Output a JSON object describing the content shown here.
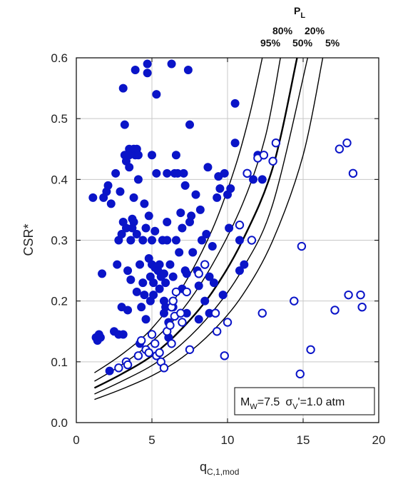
{
  "chart_data": {
    "type": "scatter",
    "xlabel": "q",
    "xlabel_sub": "C,1,mod",
    "ylabel": "CSR*",
    "xlim": [
      0,
      20
    ],
    "ylim": [
      0,
      0.6
    ],
    "xticks": [
      "0",
      "5",
      "10",
      "15",
      "20"
    ],
    "yticks": [
      "0.0",
      "0.1",
      "0.2",
      "0.3",
      "0.4",
      "0.5",
      "0.6"
    ],
    "grid": true,
    "curve_group_title": "P",
    "curve_group_title_sub": "L",
    "curve_labels": [
      "80%",
      "20%",
      "95%",
      "50%",
      "5%"
    ],
    "annotation": {
      "m": "M",
      "m_sub": "W",
      "m_val": "=7.5",
      "s": "σ",
      "s_sub": "V",
      "s_val": "'=1.0 atm"
    },
    "probability_curves": [
      {
        "name": "95%",
        "x": [
          1.2,
          3,
          5,
          7,
          9,
          10.5,
          11.5,
          12.3
        ],
        "y": [
          0.082,
          0.112,
          0.155,
          0.222,
          0.318,
          0.42,
          0.51,
          0.6
        ]
      },
      {
        "name": "80%",
        "x": [
          1.2,
          3,
          5,
          7,
          9,
          11,
          12.5,
          13.5
        ],
        "y": [
          0.068,
          0.095,
          0.133,
          0.185,
          0.26,
          0.36,
          0.47,
          0.6
        ]
      },
      {
        "name": "50%",
        "x": [
          1.2,
          3,
          5,
          7,
          9,
          11,
          13,
          14.6
        ],
        "y": [
          0.057,
          0.08,
          0.11,
          0.155,
          0.215,
          0.3,
          0.42,
          0.6
        ]
      },
      {
        "name": "20%",
        "x": [
          1.2,
          3,
          5,
          7,
          9,
          11,
          13,
          15.3
        ],
        "y": [
          0.047,
          0.068,
          0.094,
          0.13,
          0.182,
          0.253,
          0.36,
          0.6
        ]
      },
      {
        "name": "5%",
        "x": [
          1.2,
          3,
          5,
          7,
          9,
          11,
          13,
          15,
          16.3
        ],
        "y": [
          0.038,
          0.055,
          0.077,
          0.107,
          0.15,
          0.21,
          0.3,
          0.44,
          0.6
        ]
      }
    ],
    "series": [
      {
        "marker": "filled-circle",
        "points": [
          [
            1.1,
            0.37
          ],
          [
            1.3,
            0.14
          ],
          [
            1.4,
            0.135
          ],
          [
            1.5,
            0.145
          ],
          [
            1.6,
            0.14
          ],
          [
            1.7,
            0.245
          ],
          [
            1.8,
            0.37
          ],
          [
            2,
            0.38
          ],
          [
            2.1,
            0.39
          ],
          [
            2.2,
            0.085
          ],
          [
            2.3,
            0.36
          ],
          [
            2.5,
            0.15
          ],
          [
            2.6,
            0.41
          ],
          [
            2.7,
            0.26
          ],
          [
            2.8,
            0.145
          ],
          [
            2.8,
            0.3
          ],
          [
            2.9,
            0.38
          ],
          [
            3,
            0.31
          ],
          [
            3,
            0.19
          ],
          [
            3.1,
            0.33
          ],
          [
            3.1,
            0.145
          ],
          [
            3.1,
            0.55
          ],
          [
            3.2,
            0.44
          ],
          [
            3.2,
            0.49
          ],
          [
            3.3,
            0.43
          ],
          [
            3.3,
            0.32
          ],
          [
            3.4,
            0.25
          ],
          [
            3.4,
            0.185
          ],
          [
            3.5,
            0.45
          ],
          [
            3.5,
            0.44
          ],
          [
            3.5,
            0.42
          ],
          [
            3.6,
            0.3
          ],
          [
            3.6,
            0.235
          ],
          [
            3.7,
            0.335
          ],
          [
            3.7,
            0.32
          ],
          [
            3.8,
            0.45
          ],
          [
            3.8,
            0.37
          ],
          [
            3.8,
            0.33
          ],
          [
            3.9,
            0.58
          ],
          [
            3.9,
            0.44
          ],
          [
            4,
            0.45
          ],
          [
            4,
            0.31
          ],
          [
            4,
            0.215
          ],
          [
            4.1,
            0.44
          ],
          [
            4.1,
            0.4
          ],
          [
            4.2,
            0.26
          ],
          [
            4.2,
            0.13
          ],
          [
            4.3,
            0.19
          ],
          [
            4.4,
            0.3
          ],
          [
            4.4,
            0.23
          ],
          [
            4.5,
            0.21
          ],
          [
            4.5,
            0.36
          ],
          [
            4.6,
            0.17
          ],
          [
            4.6,
            0.32
          ],
          [
            4.7,
            0.59
          ],
          [
            4.7,
            0.575
          ],
          [
            4.8,
            0.34
          ],
          [
            4.8,
            0.27
          ],
          [
            4.9,
            0.24
          ],
          [
            4.9,
            0.2
          ],
          [
            5,
            0.44
          ],
          [
            5,
            0.3
          ],
          [
            5,
            0.26
          ],
          [
            5.1,
            0.21
          ],
          [
            5.1,
            0.23
          ],
          [
            5.2,
            0.255
          ],
          [
            5.2,
            0.315
          ],
          [
            5.3,
            0.54
          ],
          [
            5.3,
            0.41
          ],
          [
            5.4,
            0.25
          ],
          [
            5.5,
            0.26
          ],
          [
            5.5,
            0.22
          ],
          [
            5.6,
            0.24
          ],
          [
            5.7,
            0.3
          ],
          [
            5.8,
            0.2
          ],
          [
            5.8,
            0.18
          ],
          [
            5.8,
            0.245
          ],
          [
            5.9,
            0.23
          ],
          [
            5.9,
            0.19
          ],
          [
            6,
            0.33
          ],
          [
            6,
            0.3
          ],
          [
            6,
            0.41
          ],
          [
            6.1,
            0.165
          ],
          [
            6.1,
            0.14
          ],
          [
            6.2,
            0.26
          ],
          [
            6.3,
            0.59
          ],
          [
            6.4,
            0.24
          ],
          [
            6.4,
            0.19
          ],
          [
            6.5,
            0.41
          ],
          [
            6.6,
            0.44
          ],
          [
            6.6,
            0.3
          ],
          [
            6.7,
            0.41
          ],
          [
            6.8,
            0.28
          ],
          [
            6.9,
            0.345
          ],
          [
            7,
            0.22
          ],
          [
            7,
            0.32
          ],
          [
            7.1,
            0.41
          ],
          [
            7.2,
            0.25
          ],
          [
            7.2,
            0.39
          ],
          [
            7.3,
            0.245
          ],
          [
            7.3,
            0.18
          ],
          [
            7.4,
            0.58
          ],
          [
            7.5,
            0.33
          ],
          [
            7.5,
            0.49
          ],
          [
            7.6,
            0.34
          ],
          [
            7.7,
            0.28
          ],
          [
            7.9,
            0.375
          ],
          [
            8,
            0.25
          ],
          [
            8.1,
            0.225
          ],
          [
            8.1,
            0.17
          ],
          [
            8.2,
            0.35
          ],
          [
            8.3,
            0.3
          ],
          [
            8.5,
            0.2
          ],
          [
            8.6,
            0.31
          ],
          [
            8.7,
            0.42
          ],
          [
            8.8,
            0.24
          ],
          [
            8.8,
            0.18
          ],
          [
            9,
            0.29
          ],
          [
            9.1,
            0.23
          ],
          [
            9.3,
            0.37
          ],
          [
            9.4,
            0.405
          ],
          [
            9.5,
            0.385
          ],
          [
            9.7,
            0.21
          ],
          [
            9.8,
            0.41
          ],
          [
            10,
            0.375
          ],
          [
            10.1,
            0.32
          ],
          [
            10.2,
            0.385
          ],
          [
            10.5,
            0.46
          ],
          [
            10.5,
            0.525
          ],
          [
            10.8,
            0.3
          ],
          [
            10.8,
            0.25
          ],
          [
            11.1,
            0.26
          ],
          [
            11.7,
            0.4
          ],
          [
            12,
            0.44
          ],
          [
            12.3,
            0.4
          ]
        ]
      },
      {
        "marker": "open-circle",
        "points": [
          [
            2.8,
            0.09
          ],
          [
            3.3,
            0.1
          ],
          [
            3.4,
            0.095
          ],
          [
            4.1,
            0.11
          ],
          [
            4.3,
            0.135
          ],
          [
            4.6,
            0.12
          ],
          [
            4.8,
            0.115
          ],
          [
            5,
            0.145
          ],
          [
            5.2,
            0.13
          ],
          [
            5.3,
            0.11
          ],
          [
            5.5,
            0.115
          ],
          [
            5.6,
            0.1
          ],
          [
            5.8,
            0.09
          ],
          [
            6,
            0.15
          ],
          [
            6.2,
            0.16
          ],
          [
            6.3,
            0.13
          ],
          [
            6.3,
            0.19
          ],
          [
            6.4,
            0.2
          ],
          [
            6.5,
            0.175
          ],
          [
            6.6,
            0.215
          ],
          [
            6.9,
            0.18
          ],
          [
            7,
            0.165
          ],
          [
            7.3,
            0.215
          ],
          [
            7.5,
            0.12
          ],
          [
            8.1,
            0.245
          ],
          [
            8.5,
            0.26
          ],
          [
            9.2,
            0.18
          ],
          [
            9.3,
            0.15
          ],
          [
            9.8,
            0.11
          ],
          [
            10,
            0.165
          ],
          [
            10.8,
            0.325
          ],
          [
            11.3,
            0.41
          ],
          [
            11.6,
            0.3
          ],
          [
            12,
            0.435
          ],
          [
            12.3,
            0.18
          ],
          [
            12.4,
            0.44
          ],
          [
            13,
            0.43
          ],
          [
            13.2,
            0.46
          ],
          [
            14.4,
            0.2
          ],
          [
            14.8,
            0.08
          ],
          [
            14.9,
            0.29
          ],
          [
            15.5,
            0.12
          ],
          [
            17.1,
            0.185
          ],
          [
            17.4,
            0.45
          ],
          [
            17.9,
            0.46
          ],
          [
            18,
            0.21
          ],
          [
            18.3,
            0.41
          ],
          [
            18.8,
            0.21
          ],
          [
            18.9,
            0.19
          ]
        ]
      }
    ]
  }
}
